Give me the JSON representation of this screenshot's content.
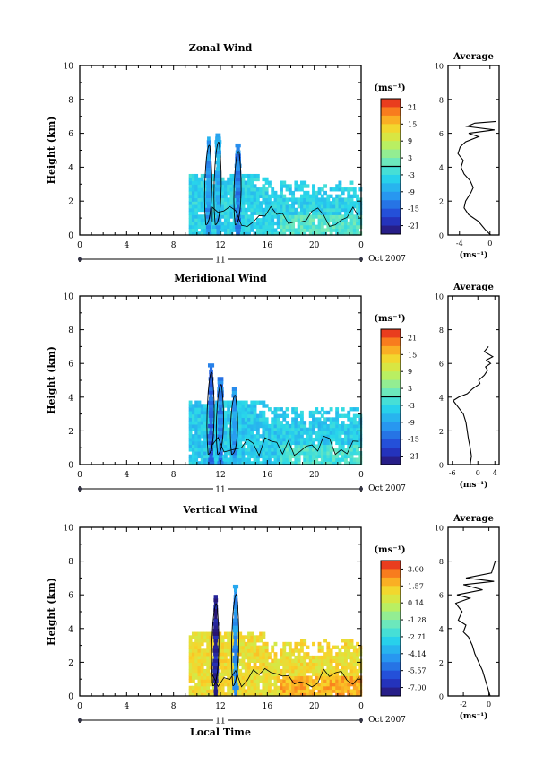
{
  "chart_data": [
    {
      "type": "heatmap",
      "title": "Zonal Wind",
      "xlabel": "",
      "ylabel": "Height (km)",
      "xlim": [
        0,
        24
      ],
      "ylim": [
        0,
        10
      ],
      "x_ticks": [
        "0",
        "4",
        "8",
        "12",
        "16",
        "20",
        "0"
      ],
      "y_ticks": [
        "0",
        "2",
        "4",
        "6",
        "8",
        "10"
      ],
      "date_label": "Oct 2007",
      "day_label": "11",
      "colorbar": {
        "unit": "(ms⁻¹)",
        "ticks": [
          "21",
          "15",
          "9",
          "3",
          "-3",
          "-9",
          "-15",
          "-21"
        ],
        "min": -24,
        "max": 24
      },
      "data_extent": {
        "x": [
          9.3,
          24
        ],
        "y": [
          0,
          3.6
        ]
      },
      "typical_value": -4,
      "convective_columns": [
        {
          "x": 11.0,
          "top": 5.8,
          "value": -10
        },
        {
          "x": 11.8,
          "top": 6.0,
          "value": -8
        },
        {
          "x": 13.5,
          "top": 5.4,
          "value": -12
        }
      ],
      "profile": {
        "title": "Average",
        "xlabel": "(ms⁻¹)",
        "x_ticks": [
          "-4",
          "0"
        ],
        "xlim": [
          -5.5,
          1.2
        ],
        "points": [
          [
            0.1,
            0
          ],
          [
            -0.6,
            0.3
          ],
          [
            -1.5,
            0.8
          ],
          [
            -2.8,
            1.2
          ],
          [
            -3.4,
            1.6
          ],
          [
            -3.2,
            2.0
          ],
          [
            -2.5,
            2.5
          ],
          [
            -2.2,
            2.8
          ],
          [
            -2.6,
            3.2
          ],
          [
            -3.4,
            3.6
          ],
          [
            -3.8,
            4.0
          ],
          [
            -3.5,
            4.4
          ],
          [
            -4.2,
            4.8
          ],
          [
            -3.9,
            5.2
          ],
          [
            -3.2,
            5.5
          ],
          [
            -1.5,
            5.8
          ],
          [
            -2.8,
            6.0
          ],
          [
            0.6,
            6.2
          ],
          [
            -3.0,
            6.4
          ],
          [
            -2.0,
            6.6
          ],
          [
            0.8,
            6.7
          ]
        ]
      }
    },
    {
      "type": "heatmap",
      "title": "Meridional Wind",
      "xlabel": "",
      "ylabel": "Height (km)",
      "xlim": [
        0,
        24
      ],
      "ylim": [
        0,
        10
      ],
      "x_ticks": [
        "0",
        "4",
        "8",
        "12",
        "16",
        "20",
        "0"
      ],
      "y_ticks": [
        "0",
        "2",
        "4",
        "6",
        "8",
        "10"
      ],
      "date_label": "Oct 2007",
      "day_label": "11",
      "colorbar": {
        "unit": "(ms⁻¹)",
        "ticks": [
          "21",
          "15",
          "9",
          "3",
          "-3",
          "-9",
          "-15",
          "-21"
        ],
        "min": -24,
        "max": 24
      },
      "data_extent": {
        "x": [
          9.3,
          24
        ],
        "y": [
          0,
          3.8
        ]
      },
      "typical_value": -5,
      "convective_columns": [
        {
          "x": 11.2,
          "top": 6.0,
          "value": -14
        },
        {
          "x": 12.0,
          "top": 5.2,
          "value": -12
        },
        {
          "x": 13.2,
          "top": 4.5,
          "value": -10
        }
      ],
      "profile": {
        "title": "Average",
        "xlabel": "(ms⁻¹)",
        "x_ticks": [
          "-6",
          "0",
          "4"
        ],
        "xlim": [
          -7,
          5
        ],
        "points": [
          [
            -1.8,
            0
          ],
          [
            -1.5,
            0.5
          ],
          [
            -1.8,
            1.0
          ],
          [
            -2.2,
            1.5
          ],
          [
            -2.5,
            2.0
          ],
          [
            -2.8,
            2.5
          ],
          [
            -3.4,
            3.0
          ],
          [
            -4.6,
            3.4
          ],
          [
            -5.8,
            3.8
          ],
          [
            -4.5,
            4.0
          ],
          [
            -2.5,
            4.2
          ],
          [
            -1.2,
            4.5
          ],
          [
            0.5,
            4.8
          ],
          [
            0.2,
            5.0
          ],
          [
            1.5,
            5.3
          ],
          [
            2.3,
            5.6
          ],
          [
            1.8,
            5.8
          ],
          [
            3.0,
            6.0
          ],
          [
            2.0,
            6.2
          ],
          [
            3.5,
            6.4
          ],
          [
            1.5,
            6.7
          ],
          [
            2.5,
            7.0
          ]
        ]
      }
    },
    {
      "type": "heatmap",
      "title": "Vertical Wind",
      "xlabel": "Local Time",
      "ylabel": "Height (km)",
      "xlim": [
        0,
        24
      ],
      "ylim": [
        0,
        10
      ],
      "x_ticks": [
        "0",
        "4",
        "8",
        "12",
        "16",
        "20",
        "0"
      ],
      "y_ticks": [
        "0",
        "2",
        "4",
        "6",
        "8",
        "10"
      ],
      "date_label": "Oct 2007",
      "day_label": "11",
      "colorbar": {
        "unit": "(ms⁻¹)",
        "ticks": [
          "3.00",
          "1.57",
          "0.14",
          "-1.28",
          "-2.71",
          "-4.14",
          "-5.57",
          "-7.00"
        ],
        "min": -7.7,
        "max": 3.7
      },
      "data_extent": {
        "x": [
          9.3,
          24
        ],
        "y": [
          0,
          3.8
        ]
      },
      "typical_value": 1.0,
      "convective_columns": [
        {
          "x": 11.6,
          "top": 6.0,
          "value": -7.0
        },
        {
          "x": 13.3,
          "top": 6.6,
          "value": -4.5
        }
      ],
      "profile": {
        "title": "Average",
        "xlabel": "(ms⁻¹)",
        "x_ticks": [
          "-2",
          "0"
        ],
        "xlim": [
          -3.2,
          0.8
        ],
        "points": [
          [
            0.1,
            0
          ],
          [
            -0.1,
            0.5
          ],
          [
            -0.3,
            1.0
          ],
          [
            -0.5,
            1.5
          ],
          [
            -0.8,
            2.0
          ],
          [
            -1.1,
            2.5
          ],
          [
            -1.3,
            3.0
          ],
          [
            -1.6,
            3.5
          ],
          [
            -2.0,
            3.8
          ],
          [
            -1.8,
            4.2
          ],
          [
            -2.4,
            4.5
          ],
          [
            -2.1,
            5.0
          ],
          [
            -2.6,
            5.5
          ],
          [
            -1.5,
            5.8
          ],
          [
            -2.5,
            6.0
          ],
          [
            -0.5,
            6.3
          ],
          [
            -2.0,
            6.6
          ],
          [
            0.4,
            6.8
          ],
          [
            -1.8,
            7.0
          ],
          [
            0.2,
            7.3
          ],
          [
            0.5,
            8.0
          ]
        ]
      }
    }
  ]
}
